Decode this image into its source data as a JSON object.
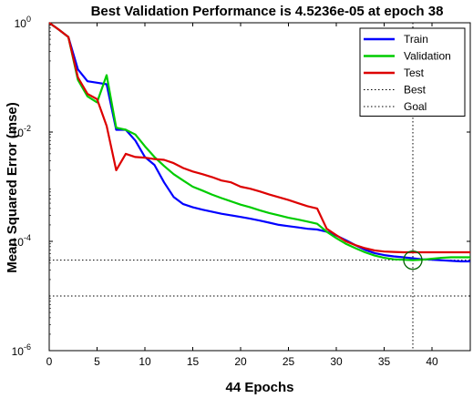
{
  "chart_data": {
    "type": "line",
    "title": "Best Validation Performance is 4.5236e-05 at epoch 38",
    "xlabel": "44 Epochs",
    "ylabel": "Mean Squared Error  (mse)",
    "xlim": [
      0,
      44
    ],
    "ylim_log10": [
      -6,
      0
    ],
    "yscale": "log",
    "x_ticks": [
      "0",
      "5",
      "10",
      "15",
      "20",
      "25",
      "30",
      "35",
      "40"
    ],
    "y_ticks": [
      {
        "mant": "10",
        "exp": "0"
      },
      {
        "mant": "10",
        "exp": "-2"
      },
      {
        "mant": "10",
        "exp": "-4"
      },
      {
        "mant": "10",
        "exp": "-6"
      }
    ],
    "series": [
      {
        "name": "Train",
        "color": "#0000ff",
        "points": [
          [
            0,
            1.0
          ],
          [
            1,
            0.75
          ],
          [
            2,
            0.55
          ],
          [
            3,
            0.14
          ],
          [
            4,
            0.085
          ],
          [
            5,
            0.08
          ],
          [
            6,
            0.075
          ],
          [
            7,
            0.011
          ],
          [
            8,
            0.011
          ],
          [
            9,
            0.007
          ],
          [
            10,
            0.0035
          ],
          [
            11,
            0.0025
          ],
          [
            12,
            0.0012
          ],
          [
            13,
            0.00065
          ],
          [
            14,
            0.00048
          ],
          [
            15,
            0.00042
          ],
          [
            16,
            0.00038
          ],
          [
            17,
            0.00035
          ],
          [
            18,
            0.00032
          ],
          [
            19,
            0.0003
          ],
          [
            20,
            0.00028
          ],
          [
            21,
            0.00026
          ],
          [
            22,
            0.00024
          ],
          [
            23,
            0.00022
          ],
          [
            24,
            0.0002
          ],
          [
            25,
            0.00019
          ],
          [
            26,
            0.00018
          ],
          [
            27,
            0.00017
          ],
          [
            28,
            0.000165
          ],
          [
            29,
            0.00015
          ],
          [
            30,
            0.000128
          ],
          [
            31,
            0.000105
          ],
          [
            32,
            8.5e-05
          ],
          [
            33,
            7e-05
          ],
          [
            34,
            6.1e-05
          ],
          [
            35,
            5.6e-05
          ],
          [
            36,
            5.3e-05
          ],
          [
            37,
            5.1e-05
          ],
          [
            38,
            4.9e-05
          ],
          [
            39,
            4.7e-05
          ],
          [
            40,
            4.6e-05
          ],
          [
            41,
            4.5e-05
          ],
          [
            42,
            4.4e-05
          ],
          [
            43,
            4.3e-05
          ],
          [
            44,
            4.3e-05
          ]
        ]
      },
      {
        "name": "Validation",
        "color": "#00cc00",
        "points": [
          [
            0,
            1.0
          ],
          [
            1,
            0.75
          ],
          [
            2,
            0.55
          ],
          [
            3,
            0.09
          ],
          [
            4,
            0.045
          ],
          [
            5,
            0.035
          ],
          [
            6,
            0.11
          ],
          [
            7,
            0.012
          ],
          [
            8,
            0.011
          ],
          [
            9,
            0.009
          ],
          [
            10,
            0.0055
          ],
          [
            11,
            0.0035
          ],
          [
            12,
            0.0024
          ],
          [
            13,
            0.0017
          ],
          [
            14,
            0.0013
          ],
          [
            15,
            0.001
          ],
          [
            16,
            0.00085
          ],
          [
            17,
            0.00072
          ],
          [
            18,
            0.00062
          ],
          [
            19,
            0.00054
          ],
          [
            20,
            0.00047
          ],
          [
            21,
            0.00042
          ],
          [
            22,
            0.00037
          ],
          [
            23,
            0.00033
          ],
          [
            24,
            0.0003
          ],
          [
            25,
            0.00027
          ],
          [
            26,
            0.00025
          ],
          [
            27,
            0.00023
          ],
          [
            28,
            0.00021
          ],
          [
            29,
            0.00015
          ],
          [
            30,
            0.000115
          ],
          [
            31,
            9e-05
          ],
          [
            32,
            7.5e-05
          ],
          [
            33,
            6.3e-05
          ],
          [
            34,
            5.5e-05
          ],
          [
            35,
            5e-05
          ],
          [
            36,
            4.7e-05
          ],
          [
            37,
            4.6e-05
          ],
          [
            38,
            4.52e-05
          ],
          [
            39,
            4.6e-05
          ],
          [
            40,
            4.8e-05
          ],
          [
            41,
            5e-05
          ],
          [
            42,
            5.1e-05
          ],
          [
            43,
            5.1e-05
          ],
          [
            44,
            5.1e-05
          ]
        ]
      },
      {
        "name": "Test",
        "color": "#dd0000",
        "points": [
          [
            0,
            1.0
          ],
          [
            1,
            0.75
          ],
          [
            2,
            0.55
          ],
          [
            3,
            0.1
          ],
          [
            4,
            0.05
          ],
          [
            5,
            0.04
          ],
          [
            6,
            0.013
          ],
          [
            7,
            0.002
          ],
          [
            8,
            0.004
          ],
          [
            9,
            0.0035
          ],
          [
            10,
            0.0034
          ],
          [
            11,
            0.0032
          ],
          [
            12,
            0.0031
          ],
          [
            13,
            0.0027
          ],
          [
            14,
            0.0022
          ],
          [
            15,
            0.0019
          ],
          [
            16,
            0.0017
          ],
          [
            17,
            0.0015
          ],
          [
            18,
            0.0013
          ],
          [
            19,
            0.0012
          ],
          [
            20,
            0.001
          ],
          [
            21,
            0.00092
          ],
          [
            22,
            0.00082
          ],
          [
            23,
            0.00072
          ],
          [
            24,
            0.00064
          ],
          [
            25,
            0.00057
          ],
          [
            26,
            0.0005
          ],
          [
            27,
            0.00044
          ],
          [
            28,
            0.0004
          ],
          [
            29,
            0.00017
          ],
          [
            30,
            0.00013
          ],
          [
            31,
            0.0001
          ],
          [
            32,
            8.5e-05
          ],
          [
            33,
            7.5e-05
          ],
          [
            34,
            6.8e-05
          ],
          [
            35,
            6.5e-05
          ],
          [
            36,
            6.4e-05
          ],
          [
            37,
            6.3e-05
          ],
          [
            38,
            6.3e-05
          ],
          [
            39,
            6.3e-05
          ],
          [
            40,
            6.3e-05
          ],
          [
            41,
            6.3e-05
          ],
          [
            42,
            6.3e-05
          ],
          [
            43,
            6.3e-05
          ],
          [
            44,
            6.3e-05
          ]
        ]
      }
    ],
    "best": {
      "epoch": 38,
      "value": 4.5236e-05,
      "label": "Best",
      "color": "#000000"
    },
    "goal": {
      "value": 1e-05,
      "label": "Goal",
      "color": "#000000"
    },
    "legend_position": "top-right",
    "grid": false
  }
}
